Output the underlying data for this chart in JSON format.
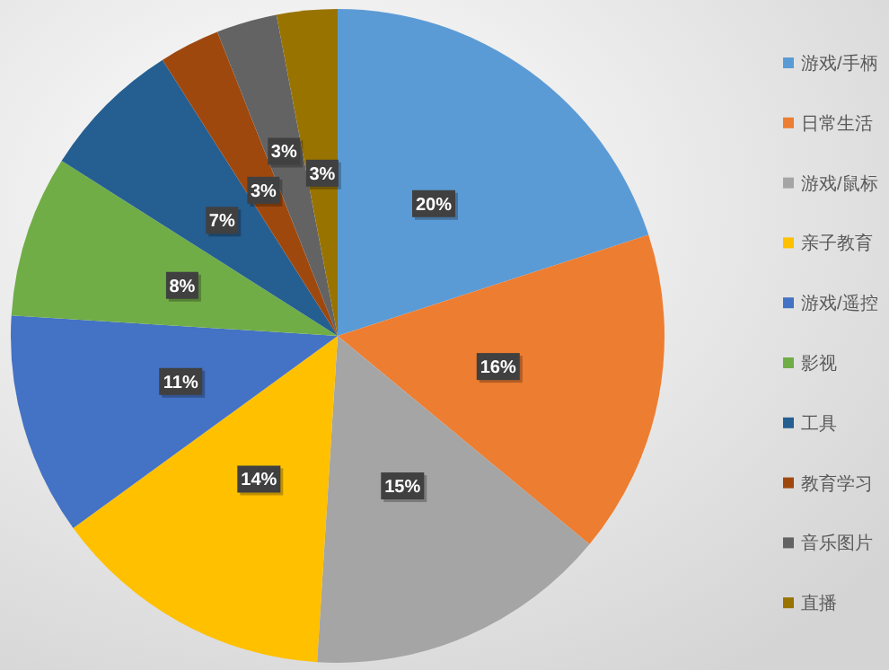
{
  "chart_data": {
    "type": "pie",
    "categories": [
      "游戏/手柄",
      "日常生活",
      "游戏/鼠标",
      "亲子教育",
      "游戏/遥控",
      "影视",
      "工具",
      "教育学习",
      "音乐图片",
      "直播"
    ],
    "values": [
      20,
      16,
      15,
      14,
      11,
      8,
      7,
      3,
      3,
      3
    ],
    "colors": [
      "#5b9bd5",
      "#ed7d31",
      "#a5a5a5",
      "#ffc000",
      "#4472c4",
      "#70ad47",
      "#255e91",
      "#9e480e",
      "#636363",
      "#997300"
    ],
    "value_labels": [
      "20%",
      "16%",
      "15%",
      "14%",
      "11%",
      "8%",
      "7%",
      "3%",
      "3%",
      "3%"
    ],
    "legend": "right"
  }
}
